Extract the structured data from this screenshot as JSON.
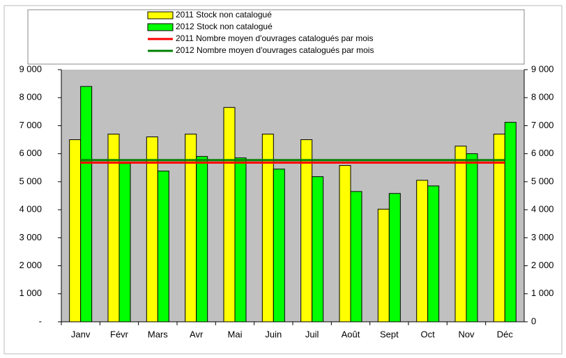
{
  "chart_data": {
    "type": "bar",
    "categories": [
      "Janv",
      "Févr",
      "Mars",
      "Avr",
      "Mai",
      "Juin",
      "Juil",
      "Août",
      "Sept",
      "Oct",
      "Nov",
      "Déc"
    ],
    "series": [
      {
        "name": "2011 Stock non catalogué",
        "type": "bar",
        "color": "#ffff00",
        "values": [
          6500,
          6700,
          6600,
          6700,
          7650,
          6700,
          6500,
          5580,
          4020,
          5050,
          6270,
          6700
        ]
      },
      {
        "name": "2012 Stock non catalogué",
        "type": "bar",
        "color": "#00ff00",
        "values": [
          8400,
          5650,
          5380,
          5900,
          5850,
          5450,
          5180,
          4650,
          4580,
          4850,
          6000,
          7120
        ]
      },
      {
        "name": "2011 Nombre moyen d'ouvrages catalogués par mois",
        "type": "line",
        "color": "#ff0000",
        "values": [
          5680,
          5680,
          5680,
          5680,
          5680,
          5680,
          5680,
          5680,
          5680,
          5680,
          5680,
          5680
        ]
      },
      {
        "name": "2012 Nombre moyen d'ouvrages catalogués par mois",
        "type": "line",
        "color": "#008000",
        "values": [
          5770,
          5770,
          5770,
          5770,
          5770,
          5770,
          5770,
          5770,
          5770,
          5770,
          5770,
          5770
        ]
      }
    ],
    "ylim": [
      0,
      9000
    ],
    "yticks": [
      {
        "value": 0,
        "label": "-"
      },
      {
        "value": 1000,
        "label": "1 000"
      },
      {
        "value": 2000,
        "label": "2 000"
      },
      {
        "value": 3000,
        "label": "3 000"
      },
      {
        "value": 4000,
        "label": "4 000"
      },
      {
        "value": 5000,
        "label": "5 000"
      },
      {
        "value": 6000,
        "label": "6 000"
      },
      {
        "value": 7000,
        "label": "7 000"
      },
      {
        "value": 8000,
        "label": "8 000"
      },
      {
        "value": 9000,
        "label": "9 000"
      }
    ],
    "y2lim": [
      0,
      9000
    ],
    "y2ticks": [
      0,
      {
        "value": 1000,
        "label": "1 000"
      },
      {
        "value": 2000,
        "label": "2 000"
      },
      {
        "value": 3000,
        "label": "3 000"
      },
      {
        "value": 4000,
        "label": "4 000"
      },
      {
        "value": 5000,
        "label": "5 000"
      },
      {
        "value": 6000,
        "label": "6 000"
      },
      {
        "value": 7000,
        "label": "7 000"
      },
      {
        "value": 8000,
        "label": "8 000"
      },
      {
        "value": 9000,
        "label": "9 000"
      }
    ],
    "plot_background": "#c0c0c0",
    "legend": "top"
  }
}
